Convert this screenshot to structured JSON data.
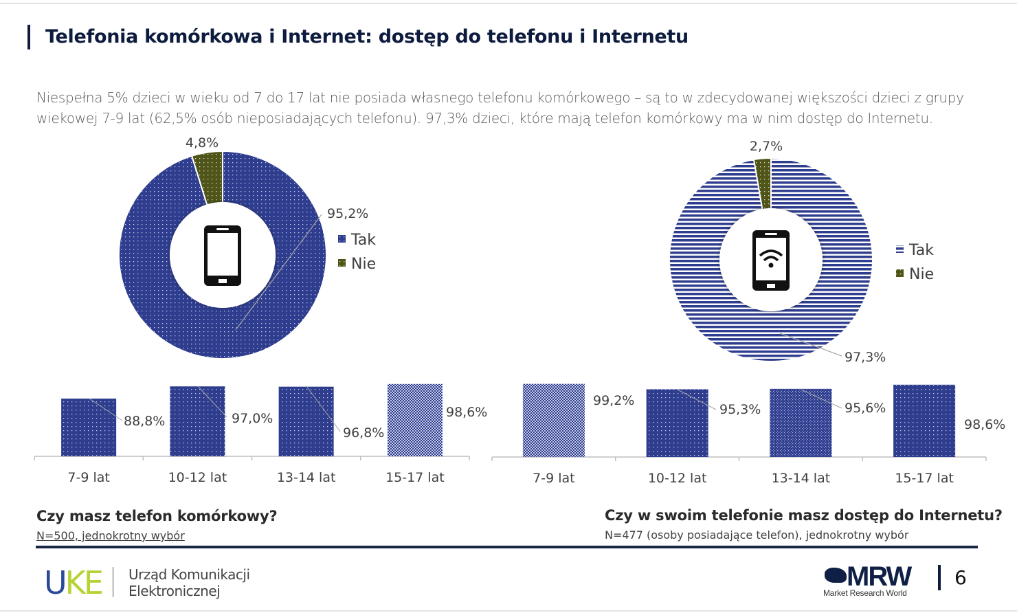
{
  "header": {
    "title": "Telefonia komórkowa i Internet: dostęp do telefonu i Internetu",
    "intro": "Niespełna 5% dzieci w wieku od 7 do 17 lat nie posiada własnego telefonu komórkowego – są to w zdecydowanej większości dzieci z grupy wiekowej 7-9 lat (62,5% osób nieposiadających telefonu). 97,3% dzieci, które mają telefon komórkowy ma w nim dostęp do Internetu."
  },
  "colors": {
    "tak": "#2e3d8e",
    "nie": "#4f5419",
    "text": "#404040",
    "dark": "#0d1b3e"
  },
  "chart_data": [
    {
      "type": "pie",
      "id": "phone-donut",
      "icon": "smartphone-icon",
      "labels": [
        "Tak",
        "Nie"
      ],
      "values": [
        95.2,
        4.8
      ],
      "value_labels": [
        "95,2%",
        "4,8%"
      ],
      "legend": [
        "Tak",
        "Nie"
      ],
      "legend_position": "right"
    },
    {
      "type": "bar",
      "id": "phone-by-age",
      "categories": [
        "7-9 lat",
        "10-12 lat",
        "13-14 lat",
        "15-17 lat"
      ],
      "values": [
        88.8,
        97.0,
        96.8,
        98.6
      ],
      "value_labels": [
        "88,8%",
        "97,0%",
        "96,8%",
        "98,6%"
      ],
      "ylim": [
        50,
        100
      ],
      "question": "Czy masz telefon komórkowy?",
      "note": "N=500, jednokrotny wybór"
    },
    {
      "type": "pie",
      "id": "internet-donut",
      "icon": "smartphone-wifi-icon",
      "labels": [
        "Tak",
        "Nie"
      ],
      "values": [
        97.3,
        2.7
      ],
      "value_labels": [
        "97,3%",
        "2,7%"
      ],
      "legend": [
        "Tak",
        "Nie"
      ],
      "legend_position": "right"
    },
    {
      "type": "bar",
      "id": "internet-by-age",
      "categories": [
        "7-9 lat",
        "10-12 lat",
        "13-14 lat",
        "15-17 lat"
      ],
      "values": [
        99.2,
        95.3,
        95.6,
        98.6
      ],
      "value_labels": [
        "99,2%",
        "95,3%",
        "95,6%",
        "98,6%"
      ],
      "ylim": [
        46,
        100
      ],
      "question": "Czy w swoim telefonie masz dostęp do Internetu?",
      "note": "N=477 (osoby posiadające telefon), jednokrotny wybór"
    }
  ],
  "footer": {
    "logo_left": "UKE",
    "logo_left_name_1": "Urząd Komunikacji",
    "logo_left_name_2": "Elektronicznej",
    "logo_right": "MRW",
    "logo_right_sub": "Market Research World",
    "page_number": "6"
  }
}
